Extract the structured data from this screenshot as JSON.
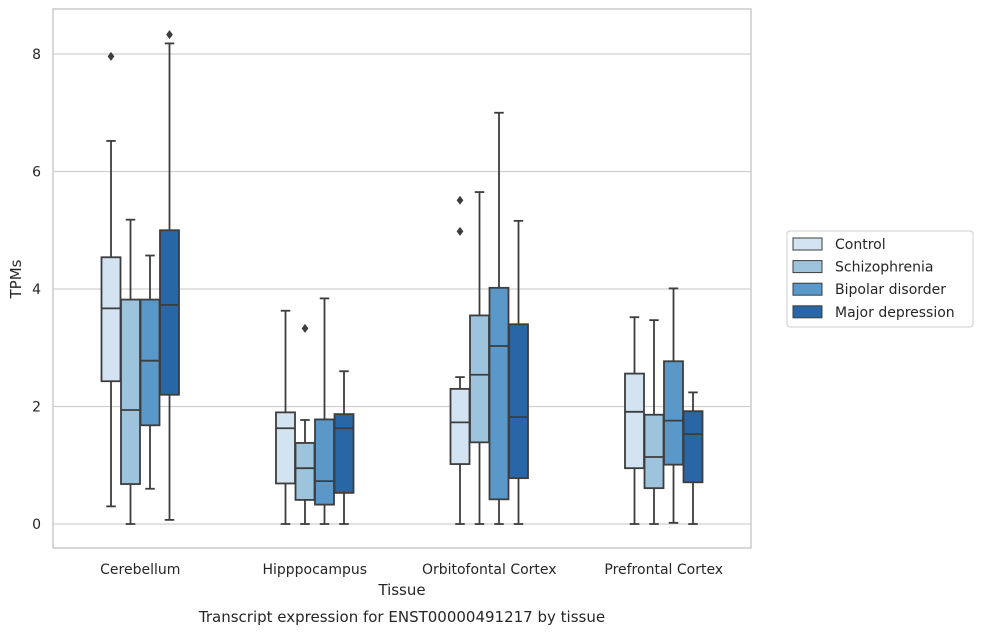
{
  "chart_data": {
    "type": "boxplot",
    "title": "",
    "caption": "Transcript expression for ENST00000491217 by tissue",
    "xlabel": "Tissue",
    "ylabel": "TPMs",
    "ylim": [
      -0.4,
      8.8
    ],
    "yticks": [
      0,
      2,
      4,
      6,
      8
    ],
    "grid": "horizontal",
    "legend_position": "right",
    "categories": [
      "Cerebellum",
      "Hipppocampus",
      "Orbitofontal Cortex",
      "Prefrontal Cortex"
    ],
    "series": [
      {
        "name": "Control",
        "color": "#d4e3f2",
        "boxes": [
          {
            "whislo": 0.3,
            "q1": 2.43,
            "median": 3.67,
            "q3": 4.54,
            "whishi": 6.52,
            "fliers": [
              7.96
            ]
          },
          {
            "whislo": 0.0,
            "q1": 0.69,
            "median": 1.63,
            "q3": 1.9,
            "whishi": 3.63,
            "fliers": []
          },
          {
            "whislo": 0.0,
            "q1": 1.02,
            "median": 1.73,
            "q3": 2.3,
            "whishi": 2.5,
            "fliers": [
              4.98,
              5.51
            ]
          },
          {
            "whislo": 0.0,
            "q1": 0.95,
            "median": 1.91,
            "q3": 2.56,
            "whishi": 3.52,
            "fliers": []
          }
        ]
      },
      {
        "name": "Schizophrenia",
        "color": "#9dc3dd",
        "boxes": [
          {
            "whislo": 0.0,
            "q1": 0.68,
            "median": 1.94,
            "q3": 3.82,
            "whishi": 5.18,
            "fliers": []
          },
          {
            "whislo": 0.0,
            "q1": 0.41,
            "median": 0.95,
            "q3": 1.38,
            "whishi": 1.77,
            "fliers": [
              3.33
            ]
          },
          {
            "whislo": 0.0,
            "q1": 1.39,
            "median": 2.54,
            "q3": 3.55,
            "whishi": 5.65,
            "fliers": []
          },
          {
            "whislo": 0.0,
            "q1": 0.61,
            "median": 1.14,
            "q3": 1.86,
            "whishi": 3.47,
            "fliers": []
          }
        ]
      },
      {
        "name": "Bipolar disorder",
        "color": "#5998c8",
        "boxes": [
          {
            "whislo": 0.6,
            "q1": 1.68,
            "median": 2.78,
            "q3": 3.82,
            "whishi": 4.57,
            "fliers": []
          },
          {
            "whislo": 0.0,
            "q1": 0.33,
            "median": 0.73,
            "q3": 1.78,
            "whishi": 3.84,
            "fliers": []
          },
          {
            "whislo": 0.0,
            "q1": 0.42,
            "median": 3.03,
            "q3": 4.02,
            "whishi": 7.0,
            "fliers": []
          },
          {
            "whislo": 0.02,
            "q1": 1.01,
            "median": 1.76,
            "q3": 2.77,
            "whishi": 4.01,
            "fliers": []
          }
        ]
      },
      {
        "name": "Major depression",
        "color": "#2866a5",
        "boxes": [
          {
            "whislo": 0.07,
            "q1": 2.2,
            "median": 3.73,
            "q3": 5.0,
            "whishi": 8.18,
            "fliers": [
              8.33
            ]
          },
          {
            "whislo": 0.0,
            "q1": 0.53,
            "median": 1.63,
            "q3": 1.87,
            "whishi": 2.6,
            "fliers": []
          },
          {
            "whislo": 0.0,
            "q1": 0.78,
            "median": 1.82,
            "q3": 3.4,
            "whishi": 5.16,
            "fliers": []
          },
          {
            "whislo": 0.0,
            "q1": 0.71,
            "median": 1.53,
            "q3": 1.92,
            "whishi": 2.24,
            "fliers": []
          }
        ]
      }
    ]
  }
}
